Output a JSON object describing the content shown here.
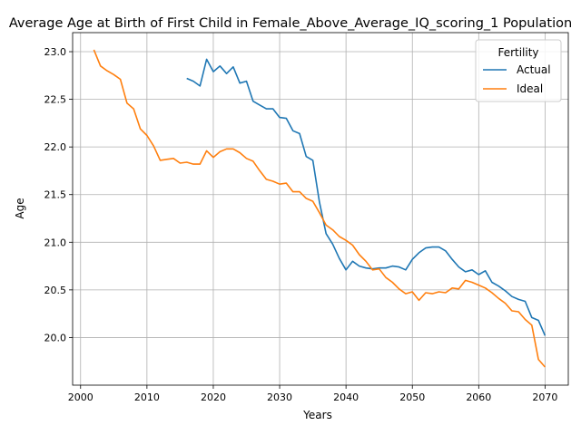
{
  "chart_data": {
    "type": "line",
    "title": "Average Age at Birth of First Child in Female_Above_Average_IQ_scoring_1 Population",
    "xlabel": "Years",
    "ylabel": "Age",
    "xlim": [
      1998.8,
      2073.5
    ],
    "ylim": [
      19.5,
      23.2
    ],
    "xticks": [
      2000,
      2010,
      2020,
      2030,
      2040,
      2050,
      2060,
      2070
    ],
    "yticks": [
      20.0,
      20.5,
      21.0,
      21.5,
      22.0,
      22.5,
      23.0
    ],
    "grid": true,
    "legend": {
      "title": "Fertility",
      "placement": "top-right"
    },
    "series": [
      {
        "name": "Actual",
        "color": "#1f77b4",
        "x": [
          2016,
          2017,
          2018,
          2019,
          2020,
          2021,
          2022,
          2023,
          2024,
          2025,
          2026,
          2027,
          2028,
          2029,
          2030,
          2031,
          2032,
          2033,
          2034,
          2035,
          2036,
          2037,
          2038,
          2039,
          2040,
          2041,
          2042,
          2043,
          2044,
          2045,
          2046,
          2047,
          2048,
          2049,
          2050,
          2051,
          2052,
          2053,
          2054,
          2055,
          2056,
          2057,
          2058,
          2059,
          2060,
          2061,
          2062,
          2063,
          2064,
          2065,
          2066,
          2067,
          2068,
          2069,
          2070
        ],
        "values": [
          22.72,
          22.69,
          22.64,
          22.92,
          22.79,
          22.85,
          22.77,
          22.84,
          22.67,
          22.69,
          22.48,
          22.44,
          22.4,
          22.4,
          22.31,
          22.3,
          22.17,
          22.14,
          21.9,
          21.86,
          21.42,
          21.09,
          20.98,
          20.83,
          20.71,
          20.8,
          20.75,
          20.73,
          20.72,
          20.73,
          20.73,
          20.75,
          20.74,
          20.71,
          20.82,
          20.89,
          20.94,
          20.95,
          20.95,
          20.91,
          20.82,
          20.74,
          20.69,
          20.71,
          20.66,
          20.7,
          20.58,
          20.54,
          20.49,
          20.43,
          20.4,
          20.38,
          20.21,
          20.18,
          20.02
        ]
      },
      {
        "name": "Ideal",
        "color": "#ff7f0e",
        "x": [
          2002,
          2003,
          2004,
          2005,
          2006,
          2007,
          2008,
          2009,
          2010,
          2011,
          2012,
          2013,
          2014,
          2015,
          2016,
          2017,
          2018,
          2019,
          2020,
          2021,
          2022,
          2023,
          2024,
          2025,
          2026,
          2027,
          2028,
          2029,
          2030,
          2031,
          2032,
          2033,
          2034,
          2035,
          2036,
          2037,
          2038,
          2039,
          2040,
          2041,
          2042,
          2043,
          2044,
          2045,
          2046,
          2047,
          2048,
          2049,
          2050,
          2051,
          2052,
          2053,
          2054,
          2055,
          2056,
          2057,
          2058,
          2059,
          2060,
          2061,
          2062,
          2063,
          2064,
          2065,
          2066,
          2067,
          2068,
          2069,
          2070
        ],
        "values": [
          23.02,
          22.85,
          22.8,
          22.76,
          22.71,
          22.46,
          22.4,
          22.19,
          22.12,
          22.01,
          21.86,
          21.87,
          21.88,
          21.83,
          21.84,
          21.82,
          21.82,
          21.96,
          21.89,
          21.95,
          21.98,
          21.98,
          21.94,
          21.88,
          21.85,
          21.75,
          21.66,
          21.64,
          21.61,
          21.62,
          21.53,
          21.53,
          21.46,
          21.43,
          21.31,
          21.18,
          21.13,
          21.06,
          21.02,
          20.97,
          20.87,
          20.8,
          20.71,
          20.72,
          20.63,
          20.58,
          20.51,
          20.46,
          20.48,
          20.39,
          20.47,
          20.46,
          20.48,
          20.47,
          20.52,
          20.51,
          20.6,
          20.58,
          20.55,
          20.52,
          20.47,
          20.41,
          20.36,
          20.28,
          20.27,
          20.19,
          20.13,
          19.77,
          19.69
        ]
      }
    ]
  }
}
